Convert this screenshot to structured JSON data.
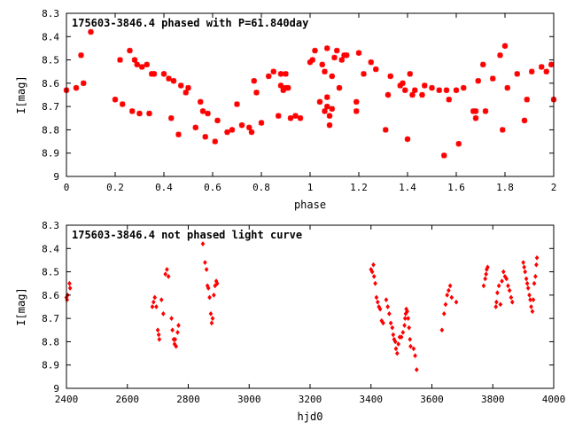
{
  "chart_data": [
    {
      "type": "scatter",
      "title": "175603-3846.4 phased with P=61.840day",
      "xlabel": "phase",
      "ylabel": "I[mag]",
      "xlim": [
        0,
        2
      ],
      "ylim": [
        8.3,
        9
      ],
      "y_inverted": true,
      "xticks": [
        0,
        0.2,
        0.4,
        0.6,
        0.8,
        1,
        1.2,
        1.4,
        1.6,
        1.8,
        2
      ],
      "xtick_labels": [
        "0",
        "0.2",
        "0.4",
        "0.6",
        "0.8",
        "1",
        "1.2",
        "1.4",
        "1.6",
        "1.8",
        "2"
      ],
      "yticks": [
        8.3,
        8.4,
        8.5,
        8.6,
        8.7,
        8.8,
        8.9,
        9
      ],
      "ytick_labels": [
        "8.3",
        "8.4",
        "8.5",
        "8.6",
        "8.7",
        "8.8",
        "8.9",
        "9"
      ],
      "marker": "star",
      "color": "#ff0000",
      "points": [
        [
          0.0,
          8.63
        ],
        [
          0.04,
          8.62
        ],
        [
          0.06,
          8.48
        ],
        [
          0.07,
          8.6
        ],
        [
          0.1,
          8.38
        ],
        [
          0.2,
          8.67
        ],
        [
          0.22,
          8.5
        ],
        [
          0.23,
          8.69
        ],
        [
          0.26,
          8.46
        ],
        [
          0.27,
          8.72
        ],
        [
          0.28,
          8.5
        ],
        [
          0.29,
          8.52
        ],
        [
          0.3,
          8.73
        ],
        [
          0.31,
          8.53
        ],
        [
          0.33,
          8.52
        ],
        [
          0.34,
          8.73
        ],
        [
          0.35,
          8.56
        ],
        [
          0.36,
          8.56
        ],
        [
          0.4,
          8.56
        ],
        [
          0.42,
          8.58
        ],
        [
          0.43,
          8.75
        ],
        [
          0.44,
          8.59
        ],
        [
          0.46,
          8.82
        ],
        [
          0.47,
          8.61
        ],
        [
          0.49,
          8.64
        ],
        [
          0.5,
          8.62
        ],
        [
          0.53,
          8.79
        ],
        [
          0.55,
          8.68
        ],
        [
          0.56,
          8.72
        ],
        [
          0.57,
          8.83
        ],
        [
          0.58,
          8.73
        ],
        [
          0.61,
          8.85
        ],
        [
          0.62,
          8.76
        ],
        [
          0.66,
          8.81
        ],
        [
          0.68,
          8.8
        ],
        [
          0.7,
          8.69
        ],
        [
          0.72,
          8.78
        ],
        [
          0.75,
          8.79
        ],
        [
          0.76,
          8.81
        ],
        [
          0.77,
          8.59
        ],
        [
          0.78,
          8.64
        ],
        [
          0.8,
          8.77
        ],
        [
          0.83,
          8.57
        ],
        [
          0.85,
          8.55
        ],
        [
          0.87,
          8.74
        ],
        [
          0.88,
          8.56
        ],
        [
          0.88,
          8.61
        ],
        [
          0.89,
          8.63
        ],
        [
          0.9,
          8.62
        ],
        [
          0.9,
          8.56
        ],
        [
          0.91,
          8.62
        ],
        [
          0.92,
          8.75
        ],
        [
          0.94,
          8.74
        ],
        [
          0.96,
          8.75
        ],
        [
          1.0,
          8.51
        ],
        [
          1.01,
          8.5
        ],
        [
          1.02,
          8.46
        ],
        [
          1.04,
          8.68
        ],
        [
          1.05,
          8.52
        ],
        [
          1.06,
          8.55
        ],
        [
          1.06,
          8.72
        ],
        [
          1.07,
          8.45
        ],
        [
          1.07,
          8.66
        ],
        [
          1.07,
          8.7
        ],
        [
          1.08,
          8.74
        ],
        [
          1.08,
          8.78
        ],
        [
          1.09,
          8.57
        ],
        [
          1.09,
          8.71
        ],
        [
          1.1,
          8.49
        ],
        [
          1.11,
          8.46
        ],
        [
          1.12,
          8.62
        ],
        [
          1.13,
          8.5
        ],
        [
          1.14,
          8.48
        ],
        [
          1.15,
          8.48
        ],
        [
          1.19,
          8.72
        ],
        [
          1.19,
          8.68
        ],
        [
          1.2,
          8.47
        ],
        [
          1.22,
          8.56
        ],
        [
          1.25,
          8.51
        ],
        [
          1.27,
          8.54
        ],
        [
          1.31,
          8.8
        ],
        [
          1.32,
          8.65
        ],
        [
          1.33,
          8.57
        ],
        [
          1.37,
          8.61
        ],
        [
          1.38,
          8.6
        ],
        [
          1.39,
          8.63
        ],
        [
          1.4,
          8.84
        ],
        [
          1.41,
          8.56
        ],
        [
          1.42,
          8.65
        ],
        [
          1.43,
          8.63
        ],
        [
          1.46,
          8.65
        ],
        [
          1.47,
          8.61
        ],
        [
          1.5,
          8.62
        ],
        [
          1.53,
          8.63
        ],
        [
          1.55,
          8.91
        ],
        [
          1.56,
          8.63
        ],
        [
          1.57,
          8.67
        ],
        [
          1.6,
          8.63
        ],
        [
          1.61,
          8.86
        ],
        [
          1.63,
          8.62
        ],
        [
          1.67,
          8.72
        ],
        [
          1.68,
          8.72
        ],
        [
          1.68,
          8.75
        ],
        [
          1.69,
          8.59
        ],
        [
          1.71,
          8.52
        ],
        [
          1.72,
          8.72
        ],
        [
          1.75,
          8.58
        ],
        [
          1.78,
          8.48
        ],
        [
          1.79,
          8.8
        ],
        [
          1.8,
          8.44
        ],
        [
          1.81,
          8.62
        ],
        [
          1.85,
          8.56
        ],
        [
          1.88,
          8.76
        ],
        [
          1.89,
          8.67
        ],
        [
          1.91,
          8.55
        ],
        [
          1.95,
          8.53
        ],
        [
          1.97,
          8.55
        ],
        [
          1.99,
          8.52
        ],
        [
          2.0,
          8.67
        ]
      ]
    },
    {
      "type": "scatter",
      "title": "175603-3846.4 not phased light curve",
      "xlabel": "hjd0",
      "ylabel": "I[mag]",
      "xlim": [
        2400,
        4000
      ],
      "ylim": [
        8.3,
        9
      ],
      "y_inverted": true,
      "xticks": [
        2400,
        2600,
        2800,
        3000,
        3200,
        3400,
        3600,
        3800,
        4000
      ],
      "xtick_labels": [
        "2400",
        "2600",
        "2800",
        "3000",
        "3200",
        "3400",
        "3600",
        "3800",
        "4000"
      ],
      "yticks": [
        8.3,
        8.4,
        8.5,
        8.6,
        8.7,
        8.8,
        8.9,
        9
      ],
      "ytick_labels": [
        "8.3",
        "8.4",
        "8.5",
        "8.6",
        "8.7",
        "8.8",
        "8.9",
        "9"
      ],
      "marker": "diamond",
      "color": "#ff0000",
      "points": [
        [
          2400,
          8.61
        ],
        [
          2402,
          8.62
        ],
        [
          2404,
          8.6
        ],
        [
          2410,
          8.55
        ],
        [
          2412,
          8.57
        ],
        [
          2682,
          8.65
        ],
        [
          2686,
          8.63
        ],
        [
          2690,
          8.61
        ],
        [
          2695,
          8.65
        ],
        [
          2700,
          8.75
        ],
        [
          2703,
          8.77
        ],
        [
          2705,
          8.79
        ],
        [
          2712,
          8.62
        ],
        [
          2718,
          8.68
        ],
        [
          2725,
          8.51
        ],
        [
          2730,
          8.49
        ],
        [
          2735,
          8.52
        ],
        [
          2745,
          8.7
        ],
        [
          2748,
          8.75
        ],
        [
          2752,
          8.79
        ],
        [
          2755,
          8.81
        ],
        [
          2757,
          8.79
        ],
        [
          2760,
          8.82
        ],
        [
          2765,
          8.76
        ],
        [
          2768,
          8.73
        ],
        [
          2848,
          8.38
        ],
        [
          2855,
          8.46
        ],
        [
          2860,
          8.49
        ],
        [
          2863,
          8.56
        ],
        [
          2866,
          8.57
        ],
        [
          2870,
          8.61
        ],
        [
          2874,
          8.68
        ],
        [
          2877,
          8.72
        ],
        [
          2880,
          8.7
        ],
        [
          2884,
          8.6
        ],
        [
          2888,
          8.56
        ],
        [
          2892,
          8.54
        ],
        [
          2895,
          8.55
        ],
        [
          3400,
          8.49
        ],
        [
          3404,
          8.5
        ],
        [
          3408,
          8.47
        ],
        [
          3410,
          8.52
        ],
        [
          3414,
          8.55
        ],
        [
          3418,
          8.61
        ],
        [
          3422,
          8.63
        ],
        [
          3426,
          8.65
        ],
        [
          3430,
          8.66
        ],
        [
          3435,
          8.71
        ],
        [
          3440,
          8.72
        ],
        [
          3450,
          8.62
        ],
        [
          3455,
          8.65
        ],
        [
          3460,
          8.68
        ],
        [
          3465,
          8.72
        ],
        [
          3470,
          8.74
        ],
        [
          3473,
          8.77
        ],
        [
          3476,
          8.79
        ],
        [
          3480,
          8.8
        ],
        [
          3482,
          8.83
        ],
        [
          3486,
          8.85
        ],
        [
          3490,
          8.81
        ],
        [
          3494,
          8.78
        ],
        [
          3500,
          8.78
        ],
        [
          3505,
          8.76
        ],
        [
          3510,
          8.73
        ],
        [
          3512,
          8.7
        ],
        [
          3514,
          8.68
        ],
        [
          3516,
          8.66
        ],
        [
          3519,
          8.67
        ],
        [
          3522,
          8.7
        ],
        [
          3525,
          8.74
        ],
        [
          3528,
          8.79
        ],
        [
          3530,
          8.82
        ],
        [
          3540,
          8.83
        ],
        [
          3545,
          8.86
        ],
        [
          3550,
          8.92
        ],
        [
          3633,
          8.75
        ],
        [
          3640,
          8.68
        ],
        [
          3645,
          8.64
        ],
        [
          3650,
          8.6
        ],
        [
          3655,
          8.58
        ],
        [
          3660,
          8.56
        ],
        [
          3665,
          8.61
        ],
        [
          3680,
          8.63
        ],
        [
          3770,
          8.56
        ],
        [
          3775,
          8.53
        ],
        [
          3778,
          8.51
        ],
        [
          3780,
          8.49
        ],
        [
          3783,
          8.48
        ],
        [
          3810,
          8.65
        ],
        [
          3812,
          8.63
        ],
        [
          3815,
          8.59
        ],
        [
          3820,
          8.56
        ],
        [
          3825,
          8.64
        ],
        [
          3830,
          8.54
        ],
        [
          3835,
          8.5
        ],
        [
          3840,
          8.52
        ],
        [
          3845,
          8.53
        ],
        [
          3850,
          8.56
        ],
        [
          3855,
          8.58
        ],
        [
          3860,
          8.61
        ],
        [
          3864,
          8.63
        ],
        [
          3900,
          8.46
        ],
        [
          3903,
          8.48
        ],
        [
          3906,
          8.5
        ],
        [
          3910,
          8.53
        ],
        [
          3913,
          8.55
        ],
        [
          3916,
          8.57
        ],
        [
          3920,
          8.6
        ],
        [
          3923,
          8.62
        ],
        [
          3926,
          8.65
        ],
        [
          3930,
          8.67
        ],
        [
          3933,
          8.62
        ],
        [
          3936,
          8.55
        ],
        [
          3940,
          8.52
        ],
        [
          3943,
          8.47
        ],
        [
          3945,
          8.44
        ]
      ]
    }
  ]
}
